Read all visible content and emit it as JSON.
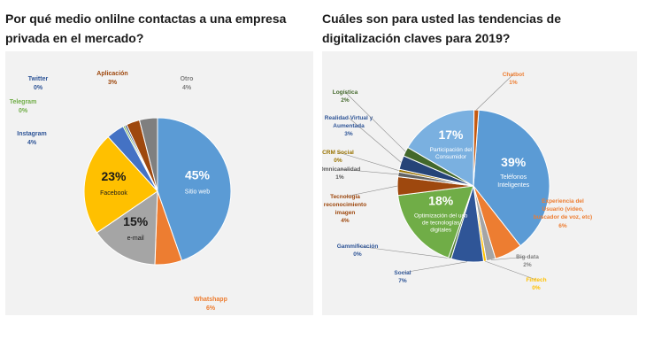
{
  "questions": {
    "left": "Por qué medio onlilne contactas a una empresa privada en el mercado?",
    "right": "Cuáles son para usted las tendencias de digitalización claves para 2019?"
  },
  "chart_data": [
    {
      "type": "pie",
      "title": "Por qué medio onlilne contactas a una empresa privada en el mercado?",
      "slices": [
        {
          "label": "Sitio web",
          "value": 45,
          "display": "45%",
          "color": "#5b9bd5"
        },
        {
          "label": "Whatshapp",
          "value": 6,
          "display": "6%",
          "color": "#ed7d31"
        },
        {
          "label": "e-mail",
          "value": 15,
          "display": "15%",
          "color": "#a5a5a5"
        },
        {
          "label": "Facebook",
          "value": 23,
          "display": "23%",
          "color": "#ffc000"
        },
        {
          "label": "Instagram",
          "value": 4,
          "display": "4%",
          "color": "#4472c4"
        },
        {
          "label": "Telegram",
          "value": 0,
          "display": "0%",
          "color": "#70ad47"
        },
        {
          "label": "Twitter",
          "value": 0,
          "display": "0%",
          "color": "#264478"
        },
        {
          "label": "Aplicación",
          "value": 3,
          "display": "3%",
          "color": "#9e480e"
        },
        {
          "label": "Otro",
          "value": 4,
          "display": "4%",
          "color": "#7f7f7f"
        }
      ]
    },
    {
      "type": "pie",
      "title": "Cuáles son para usted las tendencias de digitalización claves para 2019?",
      "slices": [
        {
          "label": "Teléfonos Inteligentes",
          "value": 39,
          "display": "39%",
          "color": "#5b9bd5"
        },
        {
          "label": "Experiencia del Usuario (video, buscador de voz, etc)",
          "value": 6,
          "display": "6%",
          "color": "#ed7d31"
        },
        {
          "label": "Big data",
          "value": 2,
          "display": "2%",
          "color": "#a5a5a5"
        },
        {
          "label": "Fintech",
          "value": 0,
          "display": "0%",
          "color": "#ffc000"
        },
        {
          "label": "Social",
          "value": 7,
          "display": "7%",
          "color": "#2f5597"
        },
        {
          "label": "Gammificación",
          "value": 0,
          "display": "0%",
          "color": "#548235"
        },
        {
          "label": "Optimización del uso de tecnologías digitales",
          "value": 18,
          "display": "18%",
          "color": "#70ad47"
        },
        {
          "label": "Tecnología reconocimiento imagen",
          "value": 4,
          "display": "4%",
          "color": "#9e480e"
        },
        {
          "label": "Omnicanalidad",
          "value": 1,
          "display": "1%",
          "color": "#636363"
        },
        {
          "label": "CRM Social",
          "value": 0,
          "display": "0%",
          "color": "#997300"
        },
        {
          "label": "Realidad Virtual y Aumentada",
          "value": 3,
          "display": "3%",
          "color": "#264478"
        },
        {
          "label": "Logística",
          "value": 2,
          "display": "2%",
          "color": "#43682b"
        },
        {
          "label": "Participación del Consumidor",
          "value": 17,
          "display": "17%",
          "color": "#7ab0e0"
        },
        {
          "label": "Chatbot",
          "value": 1,
          "display": "1%",
          "color": "#c55a11"
        }
      ]
    }
  ]
}
